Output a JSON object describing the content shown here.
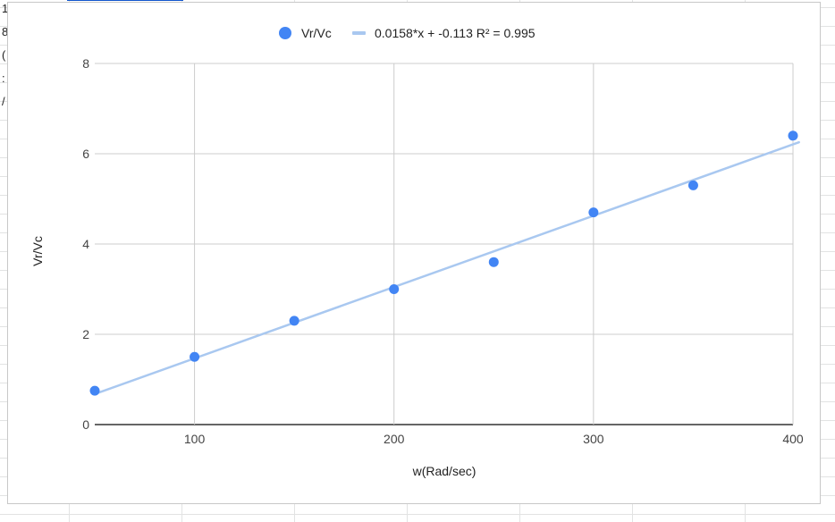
{
  "sheet": {
    "left_cells": [
      "1",
      "8",
      "(",
      ":",
      "/"
    ]
  },
  "chart_data": {
    "type": "scatter",
    "title": "",
    "xlabel": "w(Rad/sec)",
    "ylabel": "Vr/Vc",
    "xlim": [
      50,
      400
    ],
    "ylim": [
      0,
      8
    ],
    "xticks": [
      100,
      200,
      300,
      400
    ],
    "yticks": [
      0,
      2,
      4,
      6,
      8
    ],
    "grid": true,
    "legend_position": "top",
    "series": [
      {
        "name": "Vr/Vc",
        "color": "#4285f4",
        "x": [
          50,
          100,
          150,
          200,
          250,
          300,
          350,
          400
        ],
        "y": [
          0.75,
          1.5,
          2.3,
          3.0,
          3.6,
          4.7,
          5.3,
          6.4
        ]
      }
    ],
    "trendline": {
      "label": "0.0158*x + -0.113 R² = 0.995",
      "slope": 0.0158,
      "intercept": -0.113,
      "r_squared": 0.995,
      "color": "#a9c8f0"
    }
  }
}
